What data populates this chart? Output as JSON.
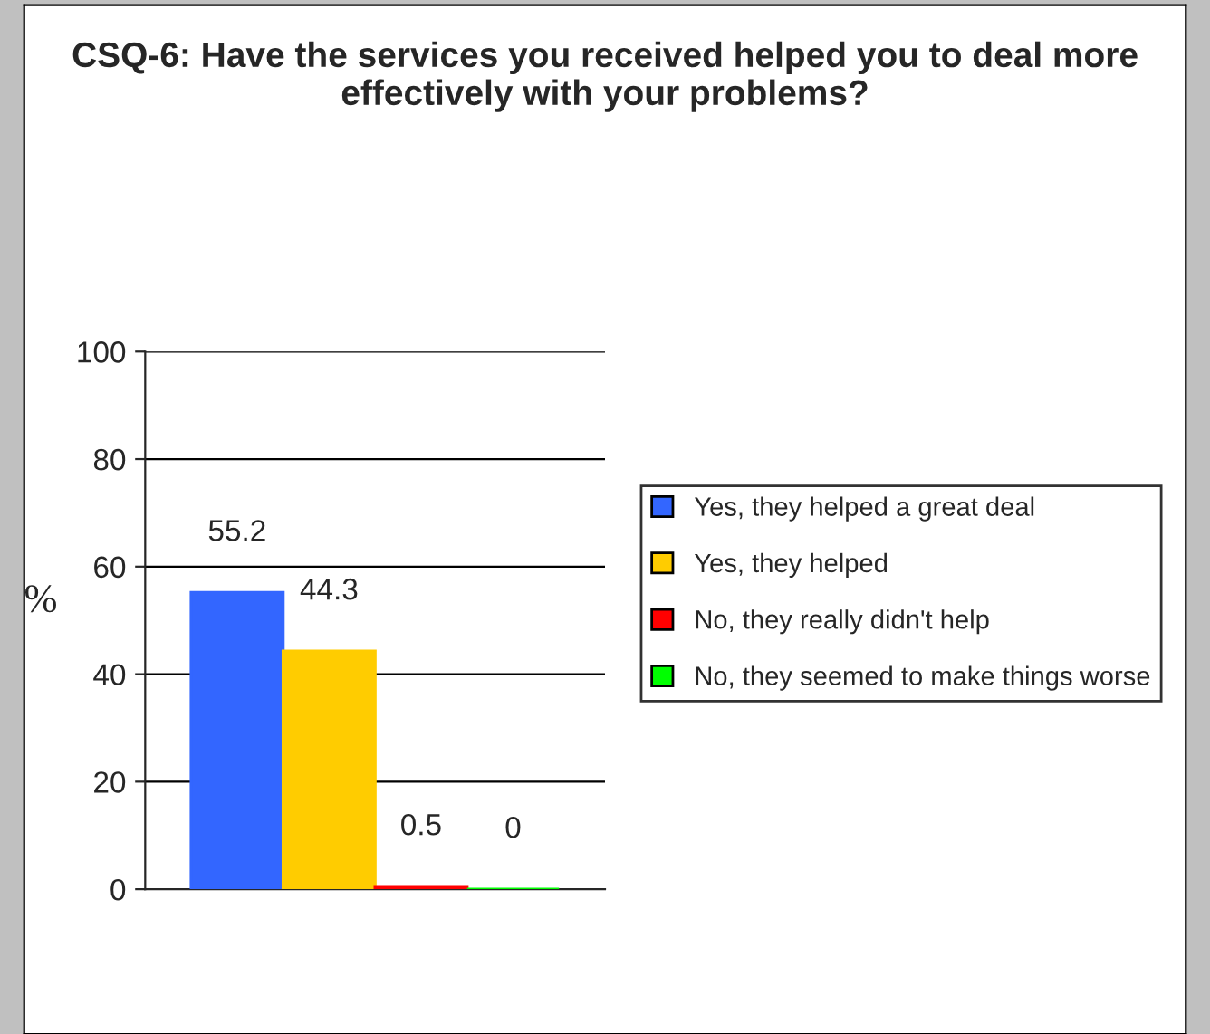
{
  "chart_data": {
    "type": "bar",
    "title": "CSQ-6: Have the services you received helped you to deal more effectively with your problems?",
    "ylabel": "%",
    "categories": [
      null
    ],
    "series": [
      {
        "name": "Yes, they helped a great deal",
        "color": "#3366ff",
        "values": [
          55.2
        ]
      },
      {
        "name": "Yes, they helped",
        "color": "#ffcc00",
        "values": [
          44.3
        ]
      },
      {
        "name": "No, they really didn't help",
        "color": "#ff0000",
        "values": [
          0.5
        ]
      },
      {
        "name": "No, they seemed to make things worse",
        "color": "#00ff00",
        "values": [
          0
        ]
      }
    ],
    "ylim": [
      0,
      100
    ],
    "yticks": [
      0,
      20,
      40,
      60,
      80,
      100
    ],
    "grid": "y",
    "legend": "right",
    "data_labels": true
  }
}
